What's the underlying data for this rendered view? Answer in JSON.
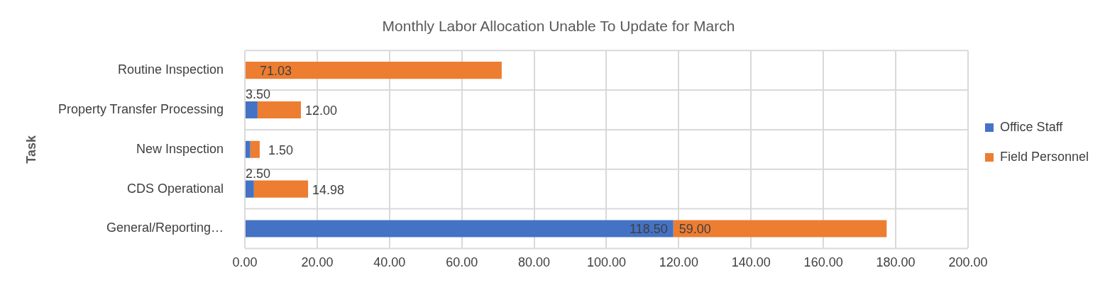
{
  "chart_data": {
    "type": "bar",
    "orientation": "horizontal",
    "stacked": true,
    "title": "Monthly Labor Allocation Unable To Update for March",
    "ylabel": "Task",
    "categories": [
      "Routine Inspection",
      "Property Transfer Processing",
      "New Inspection",
      "CDS Operational",
      "General/Reporting…"
    ],
    "series": [
      {
        "name": "Office Staff",
        "color": "#4472c4",
        "values": [
          null,
          3.5,
          1.5,
          2.5,
          118.5
        ],
        "value_labels": [
          null,
          "3.50",
          "1.50",
          "2.50",
          "118.50"
        ]
      },
      {
        "name": "Field Personnel",
        "color": "#ed7d31",
        "values": [
          71.03,
          12,
          2.6,
          14.98,
          59
        ],
        "value_labels": [
          "71.03",
          "12.00",
          null,
          "14.98",
          "59.00"
        ]
      }
    ],
    "xlim": [
      0,
      200
    ],
    "xticks": [
      {
        "value": 0,
        "label": "0.00"
      },
      {
        "value": 20,
        "label": "20.00"
      },
      {
        "value": 40,
        "label": "40.00"
      },
      {
        "value": 60,
        "label": "60.00"
      },
      {
        "value": 80,
        "label": "80.00"
      },
      {
        "value": 100,
        "label": "100.00"
      },
      {
        "value": 120,
        "label": "120.00"
      },
      {
        "value": 140,
        "label": "140.00"
      },
      {
        "value": 160,
        "label": "160.00"
      },
      {
        "value": 180,
        "label": "180.00"
      },
      {
        "value": 200,
        "label": "200.00"
      }
    ],
    "grid": true,
    "legend": "right"
  }
}
